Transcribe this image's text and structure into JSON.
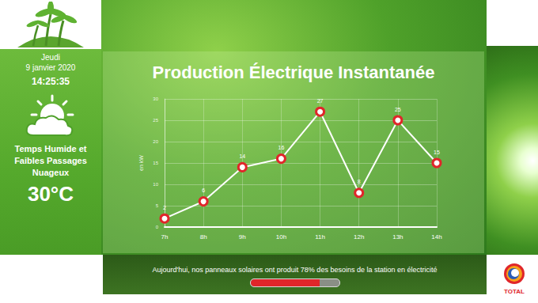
{
  "chart_data": {
    "type": "line",
    "title": "Production Électrique Instantanée",
    "ylabel": "en kW",
    "categories": [
      "7h",
      "8h",
      "9h",
      "10h",
      "11h",
      "12h",
      "13h",
      "14h"
    ],
    "values": [
      2,
      6,
      14,
      16,
      27,
      8,
      25,
      15
    ],
    "color": "#ffffff",
    "marker": "circle",
    "ylim": [
      0,
      30
    ],
    "yticks": [
      0,
      5,
      10,
      15,
      20,
      25,
      30
    ],
    "grid": true,
    "data_labels": true
  },
  "sidebar": {
    "day": "Jeudi",
    "date": "9 janvier 2020",
    "time": "14:25:35",
    "weather": "Temps Humide et Faibles Passages Nuageux",
    "temperature": "30°C"
  },
  "footer": {
    "text": "Aujourd'hui, nos panneaux solaires ont produit 78% des besoins de la station en électricité",
    "progress": 78
  },
  "logo": "TOTAL"
}
